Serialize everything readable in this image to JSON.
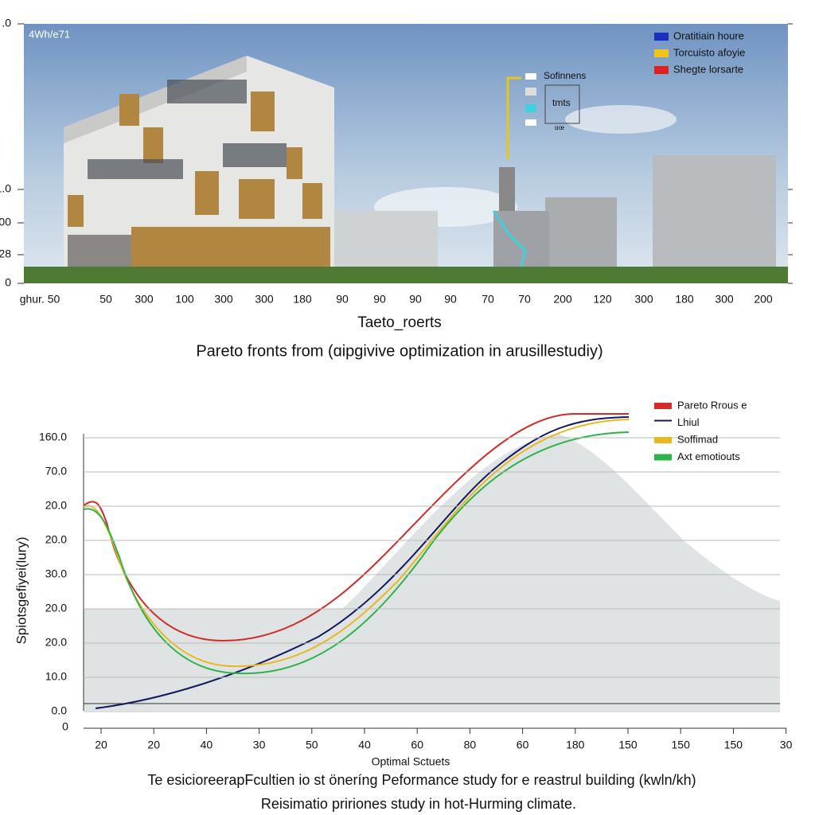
{
  "top": {
    "corner_label": "4Wh/e71",
    "y_ticks": [
      ".0",
      "1.0",
      "00",
      "28",
      "0"
    ],
    "x_ticks": [
      "ghur. 50",
      "50",
      "300",
      "100",
      "300",
      "300",
      "180",
      "90",
      "90",
      "90",
      "90",
      "70",
      "70",
      "200",
      "120",
      "300",
      "180",
      "300",
      "200"
    ],
    "x_label": "Taeto_roerts",
    "caption": "Pareto fronts from (ɑipgivive optimization in arusillestudiy)",
    "legend": [
      {
        "name": "Oratitiain houre",
        "color": "#1a2fbf"
      },
      {
        "name": "Torcuisto afoyie",
        "color": "#f0c419"
      },
      {
        "name": "Shegte lorsarte",
        "color": "#e02020"
      }
    ],
    "inset": [
      "Sofinnens",
      "tmts",
      "ɑœ"
    ]
  },
  "bottom": {
    "y_label": "Spiotsgefiyei(lury)",
    "y_ticks": [
      "160.0",
      "70.0",
      "20.0",
      "20.0",
      "30.0",
      "20.0",
      "20.0",
      "10.0",
      "0.0"
    ],
    "origin_label": "0",
    "x_ticks": [
      "20",
      "20",
      "40",
      "30",
      "50",
      "40",
      "60",
      "80",
      "60",
      "180",
      "150",
      "150",
      "150",
      "30"
    ],
    "x_label": "Optimal Sctuets",
    "legend": [
      {
        "name": "Pareto Rrous e",
        "color": "#d42a2a"
      },
      {
        "name": "Lhiul",
        "color": "#141a5e"
      },
      {
        "name": "Soffimad",
        "color": "#e8b820"
      },
      {
        "name": "Axt emotiouts",
        "color": "#2db34a"
      }
    ],
    "caption": "Te esicioreerapFcultien io st öneríng Peformance study for e reastrul building (kwln/kh)",
    "caption2": "Reisimatio pririones study in hot-Hurming climate."
  }
}
